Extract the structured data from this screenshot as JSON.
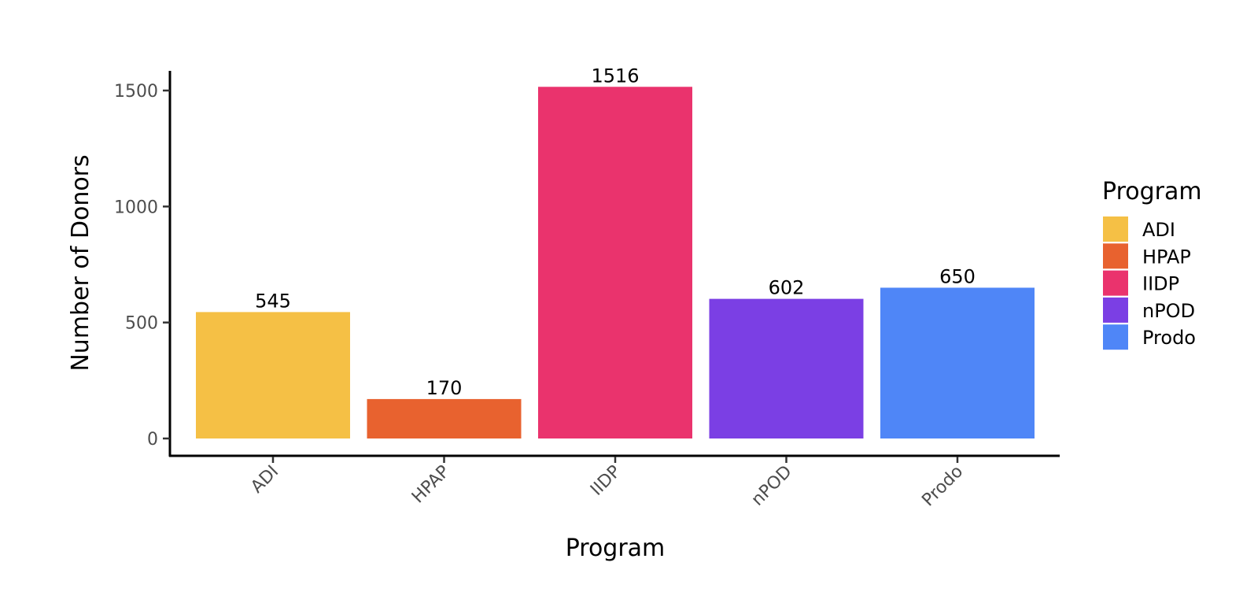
{
  "chart_data": {
    "type": "bar",
    "title": "",
    "xlabel": "Program",
    "ylabel": "Number of Donors",
    "categories": [
      "ADI",
      "HPAP",
      "IIDP",
      "nPOD",
      "Prodo"
    ],
    "values": [
      545,
      170,
      1516,
      602,
      650
    ],
    "colors": [
      "#F5C045",
      "#E8622F",
      "#EA336D",
      "#7B3FE4",
      "#4F86F7"
    ],
    "yticks": [
      0,
      500,
      1000,
      1500
    ],
    "ylim": [
      -75,
      1590
    ],
    "grid": false,
    "legend": {
      "title": "Program",
      "position": "right",
      "entries": [
        "ADI",
        "HPAP",
        "IIDP",
        "nPOD",
        "Prodo"
      ]
    }
  }
}
